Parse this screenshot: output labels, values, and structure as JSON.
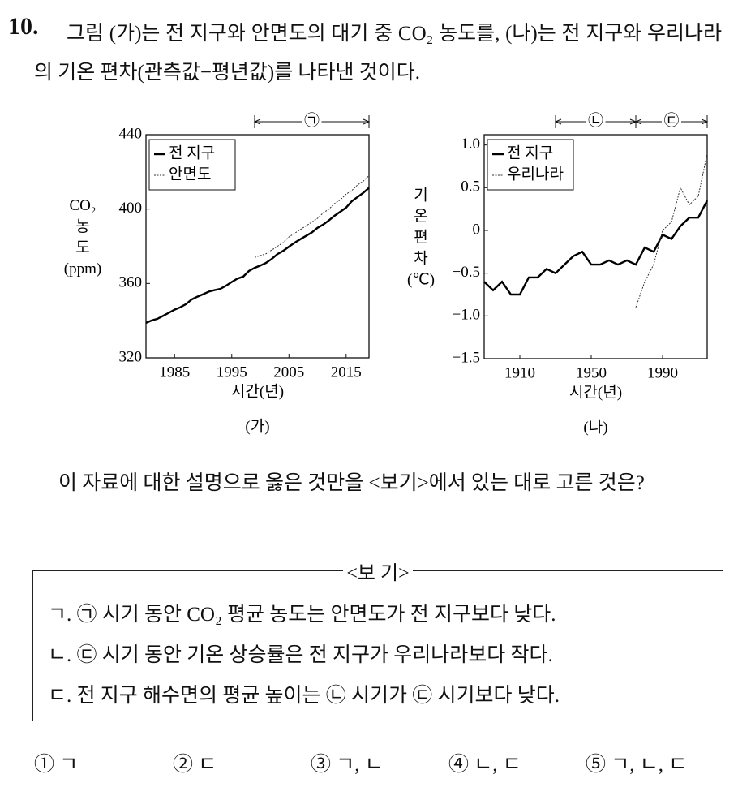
{
  "question": {
    "number": "10.",
    "stem": "그림 (가)는 전 지구와 안면도의 대기 중 CO₂ 농도를, (나)는 전 지구와 우리나라의 기온 편차(관측값−평년값)를 나타낸 것이다.",
    "prompt": "이 자료에 대한 설명으로 옳은 것만을 <보기>에서 있는 대로 고른 것은?"
  },
  "chart_data": [
    {
      "type": "line",
      "caption": "(가)",
      "xlabel": "시간(년)",
      "ylabel": [
        "CO₂",
        "농",
        "도",
        "(ppm)"
      ],
      "x": [
        1980,
        1981,
        1982,
        1983,
        1984,
        1985,
        1986,
        1987,
        1988,
        1989,
        1990,
        1991,
        1992,
        1993,
        1994,
        1995,
        1996,
        1997,
        1998,
        1999,
        2000,
        2001,
        2002,
        2003,
        2004,
        2005,
        2006,
        2007,
        2008,
        2009,
        2010,
        2011,
        2012,
        2013,
        2014,
        2015,
        2016,
        2017,
        2018,
        2019
      ],
      "xlim": [
        1980,
        2019
      ],
      "xticks": [
        1985,
        1995,
        2005,
        2015
      ],
      "ylim": [
        320,
        440
      ],
      "yticks": [
        320,
        360,
        400,
        440
      ],
      "legend": "upper left",
      "spans": [
        {
          "label": "㉠",
          "x": [
            1999,
            2019
          ]
        }
      ],
      "series": [
        {
          "name": "전 지구",
          "color": "#000000",
          "style": "solid",
          "values": [
            338.8,
            340.1,
            341.0,
            342.6,
            344.2,
            345.9,
            347.2,
            348.9,
            351.4,
            352.9,
            354.2,
            355.6,
            356.4,
            357.1,
            358.8,
            360.8,
            362.6,
            363.7,
            366.7,
            368.4,
            369.6,
            371.1,
            373.2,
            375.8,
            377.5,
            379.8,
            381.9,
            383.8,
            385.6,
            387.4,
            389.9,
            391.7,
            393.9,
            396.5,
            398.6,
            400.8,
            404.2,
            406.5,
            408.7,
            411.4
          ]
        },
        {
          "name": "안면도",
          "color": "#333333",
          "style": "dotted",
          "values": [
            null,
            null,
            null,
            null,
            null,
            null,
            null,
            null,
            null,
            null,
            null,
            null,
            null,
            null,
            null,
            null,
            null,
            null,
            null,
            374,
            375,
            376,
            378,
            380,
            382,
            385,
            387,
            389,
            391,
            393,
            395,
            398,
            400,
            403,
            405,
            408,
            410,
            413,
            415,
            418
          ]
        }
      ]
    },
    {
      "type": "line",
      "caption": "(나)",
      "xlabel": "시간(년)",
      "ylabel": [
        "기",
        "온",
        "편",
        "차",
        "(℃)"
      ],
      "x": [
        1890,
        1895,
        1900,
        1905,
        1910,
        1915,
        1920,
        1925,
        1930,
        1935,
        1940,
        1945,
        1950,
        1955,
        1960,
        1965,
        1970,
        1975,
        1980,
        1985,
        1990,
        1995,
        2000,
        2005,
        2010,
        2015
      ],
      "xlim": [
        1890,
        2015
      ],
      "xticks": [
        1910,
        1950,
        1990
      ],
      "ylim": [
        -1.5,
        1.12
      ],
      "yticks": [
        {
          "value": -1.5,
          "label": "−1.5"
        },
        {
          "value": -1,
          "label": "−1.0"
        },
        {
          "value": -0.5,
          "label": "−0.5"
        },
        0,
        0.5,
        {
          "value": 1,
          "label": "1.0"
        }
      ],
      "legend": "upper left",
      "spans": [
        {
          "label": "㉡",
          "x": [
            1930,
            1975
          ]
        },
        {
          "label": "㉢",
          "x": [
            1975,
            2015
          ]
        }
      ],
      "series": [
        {
          "name": "전 지구",
          "color": "#000000",
          "style": "solid",
          "values": [
            -0.6,
            -0.7,
            -0.6,
            -0.75,
            -0.75,
            -0.55,
            -0.55,
            -0.45,
            -0.5,
            -0.4,
            -0.3,
            -0.25,
            -0.4,
            -0.4,
            -0.35,
            -0.4,
            -0.35,
            -0.4,
            -0.2,
            -0.25,
            -0.05,
            -0.1,
            0.05,
            0.15,
            0.15,
            0.35
          ]
        },
        {
          "name": "우리나라",
          "color": "#333333",
          "style": "dotted",
          "values": [
            null,
            null,
            null,
            null,
            null,
            null,
            null,
            null,
            null,
            null,
            null,
            null,
            null,
            null,
            null,
            null,
            null,
            -0.9,
            -0.6,
            -0.4,
            0,
            0.1,
            0.5,
            0.3,
            0.4,
            0.9
          ]
        }
      ]
    }
  ],
  "box": {
    "title": "<보 기>",
    "items": [
      "ㄱ. ㉠ 시기 동안 CO₂ 평균 농도는 안면도가 전 지구보다 낮다.",
      "ㄴ. ㉢ 시기 동안 기온 상승률은 전 지구가 우리나라보다 작다.",
      "ㄷ. 전 지구 해수면의 평균 높이는 ㉡ 시기가 ㉢ 시기보다 낮다."
    ]
  },
  "choices": [
    "① ㄱ",
    "② ㄷ",
    "③ ㄱ, ㄴ",
    "④ ㄴ, ㄷ",
    "⑤ ㄱ, ㄴ, ㄷ"
  ]
}
